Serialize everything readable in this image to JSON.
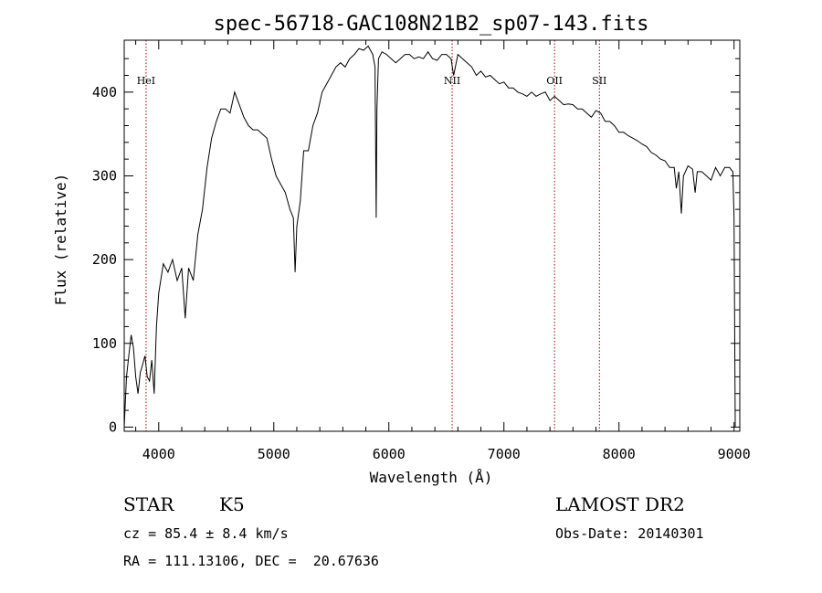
{
  "chart_data": {
    "type": "line",
    "title": "spec-56718-GAC108N21B2_sp07-143.fits",
    "xlabel": "Wavelength (Å)",
    "ylabel": "Flux (relative)",
    "xlim": [
      3700,
      9050
    ],
    "ylim": [
      -5,
      462
    ],
    "x_ticks": [
      4000,
      5000,
      6000,
      7000,
      8000,
      9000
    ],
    "y_ticks": [
      0,
      100,
      200,
      300,
      400
    ],
    "grid": false,
    "line_color": "#000000",
    "marker_color": "#b00000",
    "lines": [
      {
        "label": "HeI",
        "x": 3890
      },
      {
        "label": "NII",
        "x": 6550
      },
      {
        "label": "OII",
        "x": 7440
      },
      {
        "label": "SII",
        "x": 7830
      }
    ],
    "series": [
      {
        "x": [
          3700,
          3720,
          3740,
          3760,
          3780,
          3800,
          3820,
          3840,
          3860,
          3880,
          3900,
          3920,
          3940,
          3960,
          3980,
          4000,
          4040,
          4080,
          4120,
          4160,
          4200,
          4230,
          4260,
          4300,
          4340,
          4380,
          4420,
          4460,
          4500,
          4540,
          4580,
          4620,
          4660,
          4700,
          4740,
          4780,
          4820,
          4860,
          4900,
          4940,
          4980,
          5020,
          5060,
          5100,
          5140,
          5170,
          5185,
          5200,
          5230,
          5260,
          5300,
          5340,
          5380,
          5420,
          5460,
          5500,
          5540,
          5580,
          5620,
          5660,
          5700,
          5740,
          5780,
          5820,
          5860,
          5880,
          5890,
          5896,
          5910,
          5940,
          5980,
          6020,
          6060,
          6100,
          6140,
          6180,
          6220,
          6260,
          6300,
          6340,
          6380,
          6420,
          6460,
          6500,
          6540,
          6563,
          6600,
          6640,
          6680,
          6720,
          6760,
          6800,
          6840,
          6880,
          6920,
          6960,
          7000,
          7040,
          7080,
          7120,
          7160,
          7200,
          7240,
          7280,
          7320,
          7360,
          7400,
          7440,
          7480,
          7520,
          7560,
          7600,
          7640,
          7680,
          7720,
          7760,
          7800,
          7840,
          7880,
          7920,
          7960,
          8000,
          8040,
          8080,
          8120,
          8160,
          8200,
          8240,
          8280,
          8320,
          8360,
          8400,
          8440,
          8480,
          8498,
          8520,
          8542,
          8560,
          8600,
          8640,
          8662,
          8680,
          8720,
          8760,
          8800,
          8840,
          8880,
          8920,
          8960,
          8990,
          9000,
          9010
        ],
        "y": [
          0,
          60,
          85,
          110,
          95,
          60,
          40,
          65,
          75,
          85,
          60,
          55,
          80,
          40,
          120,
          160,
          195,
          185,
          200,
          175,
          190,
          130,
          190,
          175,
          230,
          260,
          310,
          345,
          365,
          380,
          380,
          375,
          400,
          385,
          370,
          360,
          355,
          355,
          350,
          345,
          320,
          300,
          290,
          280,
          260,
          250,
          185,
          240,
          270,
          330,
          330,
          360,
          375,
          400,
          410,
          420,
          430,
          435,
          430,
          440,
          445,
          452,
          450,
          455,
          445,
          430,
          250,
          380,
          440,
          448,
          445,
          440,
          435,
          440,
          445,
          445,
          440,
          442,
          440,
          448,
          440,
          438,
          445,
          445,
          440,
          420,
          445,
          440,
          435,
          430,
          420,
          425,
          418,
          420,
          415,
          410,
          412,
          405,
          405,
          400,
          398,
          395,
          400,
          395,
          398,
          400,
          390,
          395,
          390,
          385,
          386,
          385,
          380,
          380,
          375,
          370,
          378,
          375,
          365,
          365,
          360,
          352,
          352,
          348,
          345,
          342,
          338,
          335,
          328,
          325,
          320,
          318,
          310,
          310,
          285,
          305,
          255,
          300,
          312,
          308,
          280,
          305,
          305,
          300,
          295,
          310,
          300,
          310,
          310,
          305,
          250,
          0
        ]
      }
    ]
  },
  "info": {
    "object_class": "STAR",
    "subclass": "K5",
    "survey": "LAMOST DR2",
    "redshift": "cz = 85.4 ± 8.4 km/s",
    "obs_date": "Obs-Date: 20140301",
    "coords": "RA = 111.13106, DEC =  20.67636"
  }
}
